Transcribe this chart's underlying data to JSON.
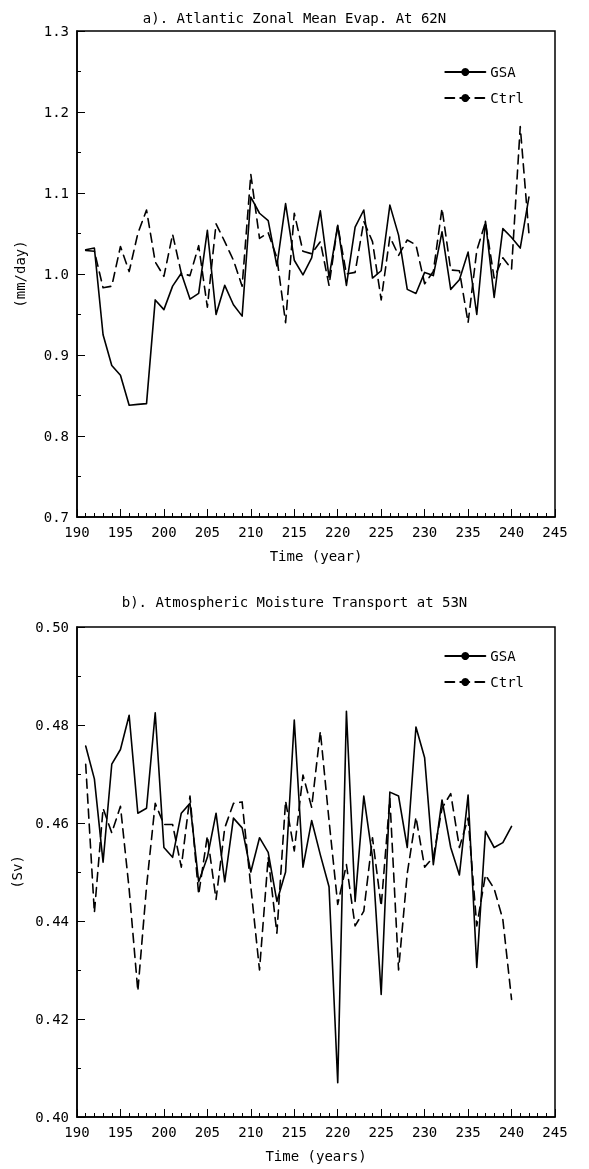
{
  "chart_data": [
    {
      "type": "line",
      "title": "a). Atlantic Zonal Mean Evap. At 62N",
      "xlabel": "Time (year)",
      "ylabel": "(mm/day)",
      "x": [
        191,
        192,
        193,
        194,
        195,
        196,
        197,
        198,
        199,
        200,
        201,
        202,
        203,
        204,
        205,
        206,
        207,
        208,
        209,
        210,
        211,
        212,
        213,
        214,
        215,
        216,
        217,
        218,
        219,
        220,
        221,
        222,
        223,
        224,
        225,
        226,
        227,
        228,
        229,
        230,
        231,
        232,
        233,
        234,
        235,
        236,
        237,
        238,
        239,
        240,
        241,
        242
      ],
      "series": [
        {
          "name": "GSA",
          "color": "#000000",
          "line_style": "solid",
          "values": [
            1.03,
            1.032,
            0.925,
            0.887,
            0.875,
            0.838,
            0.839,
            0.84,
            0.968,
            0.956,
            0.985,
            1.001,
            0.969,
            0.976,
            1.054,
            0.95,
            0.986,
            0.962,
            0.948,
            1.095,
            1.075,
            1.066,
            1.01,
            1.087,
            1.017,
            0.999,
            1.02,
            1.078,
            0.996,
            1.06,
            0.986,
            1.058,
            1.079,
            0.995,
            1.004,
            1.085,
            1.048,
            0.981,
            0.976,
            1.002,
            0.998,
            1.052,
            0.981,
            0.993,
            1.027,
            0.95,
            1.065,
            0.971,
            1.056,
            1.045,
            1.032,
            1.095
          ]
        },
        {
          "name": "Ctrl",
          "color": "#000000",
          "line_style": "dashed",
          "values": [
            1.029,
            1.028,
            0.983,
            0.985,
            1.034,
            1.003,
            1.05,
            1.079,
            1.015,
            0.997,
            1.049,
            1.001,
            0.998,
            1.035,
            0.959,
            1.062,
            1.04,
            1.017,
            0.985,
            1.123,
            1.044,
            1.051,
            1.02,
            0.94,
            1.075,
            1.028,
            1.025,
            1.04,
            0.986,
            1.06,
            1.0,
            1.002,
            1.065,
            1.04,
            0.968,
            1.046,
            1.023,
            1.042,
            1.036,
            0.988,
            1.003,
            1.081,
            1.005,
            1.004,
            0.94,
            1.029,
            1.064,
            0.995,
            1.02,
            1.006,
            1.182,
            1.05
          ]
        }
      ],
      "xlim": [
        190,
        245
      ],
      "xticks": [
        190,
        195,
        200,
        205,
        210,
        215,
        220,
        225,
        230,
        235,
        240,
        245
      ],
      "ylim": [
        0.7,
        1.3
      ],
      "yticks": [
        0.7,
        0.8,
        0.9,
        {
          "value": 1,
          "label": "1.0"
        },
        1.1,
        1.2,
        1.3
      ],
      "grid": false,
      "legend": "top right",
      "marker": "none"
    },
    {
      "type": "line",
      "title": "b). Atmospheric Moisture Transport at 53N",
      "xlabel": "Time (years)",
      "ylabel": "(Sv)",
      "x": [
        191,
        192,
        193,
        194,
        195,
        196,
        197,
        198,
        199,
        200,
        201,
        202,
        203,
        204,
        205,
        206,
        207,
        208,
        209,
        210,
        211,
        212,
        213,
        214,
        215,
        216,
        217,
        218,
        219,
        220,
        221,
        222,
        223,
        224,
        225,
        226,
        227,
        228,
        229,
        230,
        231,
        232,
        233,
        234,
        235,
        236,
        237,
        238,
        239,
        240
      ],
      "series": [
        {
          "name": "GSA",
          "color": "#000000",
          "line_style": "solid",
          "values": [
            0.4757,
            0.469,
            0.452,
            0.472,
            0.475,
            0.482,
            0.462,
            0.463,
            0.4825,
            0.455,
            0.453,
            0.462,
            0.464,
            0.448,
            0.453,
            0.462,
            0.448,
            0.461,
            0.459,
            0.45,
            0.457,
            0.454,
            0.444,
            0.45,
            0.481,
            0.451,
            0.4605,
            0.4535,
            0.447,
            0.407,
            0.4828,
            0.444,
            0.4655,
            0.453,
            0.425,
            0.4663,
            0.4655,
            0.455,
            0.4796,
            0.4733,
            0.4515,
            0.4647,
            0.455,
            0.4494,
            0.4657,
            0.4305,
            0.4583,
            0.455,
            0.456,
            0.4593
          ]
        },
        {
          "name": "Ctrl",
          "color": "#000000",
          "line_style": "dashed",
          "values": [
            0.472,
            0.4417,
            0.463,
            0.458,
            0.4634,
            0.4465,
            0.4257,
            0.447,
            0.464,
            0.4597,
            0.4597,
            0.451,
            0.4655,
            0.4454,
            0.4574,
            0.4444,
            0.459,
            0.464,
            0.4643,
            0.447,
            0.43,
            0.453,
            0.4375,
            0.4645,
            0.4543,
            0.4698,
            0.4632,
            0.4787,
            0.4605,
            0.4434,
            0.4515,
            0.439,
            0.442,
            0.457,
            0.443,
            0.465,
            0.43,
            0.4497,
            0.4612,
            0.451,
            0.453,
            0.463,
            0.466,
            0.455,
            0.461,
            0.439,
            0.4494,
            0.4466,
            0.4403,
            0.424
          ]
        }
      ],
      "xlim": [
        190,
        245
      ],
      "xticks": [
        190,
        195,
        200,
        205,
        210,
        215,
        220,
        225,
        230,
        235,
        240,
        245
      ],
      "ylim": [
        0.4,
        0.5
      ],
      "yticks": [
        {
          "value": 0.4,
          "label": "0.40"
        },
        {
          "value": 0.42,
          "label": "0.42"
        },
        {
          "value": 0.44,
          "label": "0.44"
        },
        {
          "value": 0.46,
          "label": "0.46"
        },
        {
          "value": 0.48,
          "label": "0.48"
        },
        {
          "value": 0.5,
          "label": "0.50"
        }
      ],
      "grid": false,
      "legend": "top right",
      "marker": "none"
    }
  ]
}
